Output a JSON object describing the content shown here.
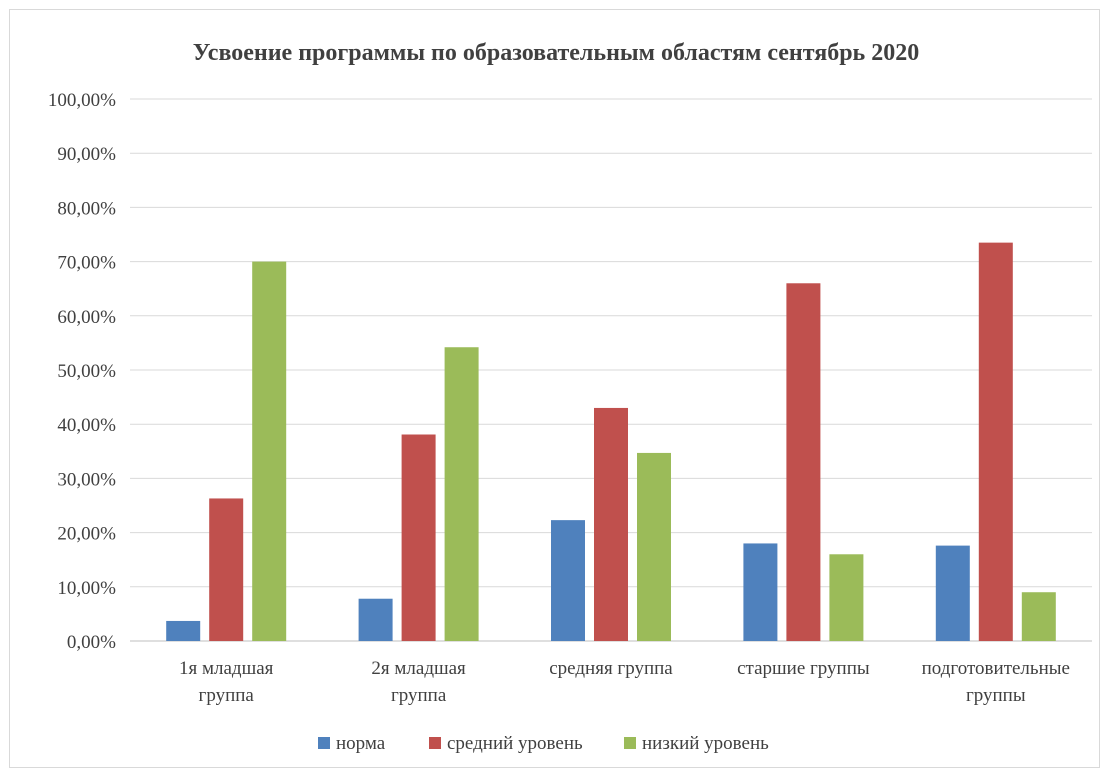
{
  "chart_data": {
    "type": "bar",
    "title": "Усвоение программы по образовательным областям сентябрь 2020",
    "categories": [
      [
        "1я младшая",
        "группа"
      ],
      [
        "2я младшая",
        "группа"
      ],
      [
        "средняя группа"
      ],
      [
        "старшие группы"
      ],
      [
        "подготовительные",
        "группы"
      ]
    ],
    "series": [
      {
        "name": "норма",
        "color": "#4f81bd",
        "values": [
          3.7,
          7.8,
          22.3,
          18.0,
          17.6
        ]
      },
      {
        "name": "средний уровень",
        "color": "#c0504d",
        "values": [
          26.3,
          38.1,
          43.0,
          66.0,
          73.5
        ]
      },
      {
        "name": "низкий уровень",
        "color": "#9bbb59",
        "values": [
          70.0,
          54.2,
          34.7,
          16.0,
          9.0
        ]
      }
    ],
    "ylim": [
      0,
      100
    ],
    "yticks": [
      "0,00%",
      "10,00%",
      "20,00%",
      "30,00%",
      "40,00%",
      "50,00%",
      "60,00%",
      "70,00%",
      "80,00%",
      "90,00%",
      "100,00%"
    ],
    "grid": true,
    "legend_position": "bottom"
  }
}
